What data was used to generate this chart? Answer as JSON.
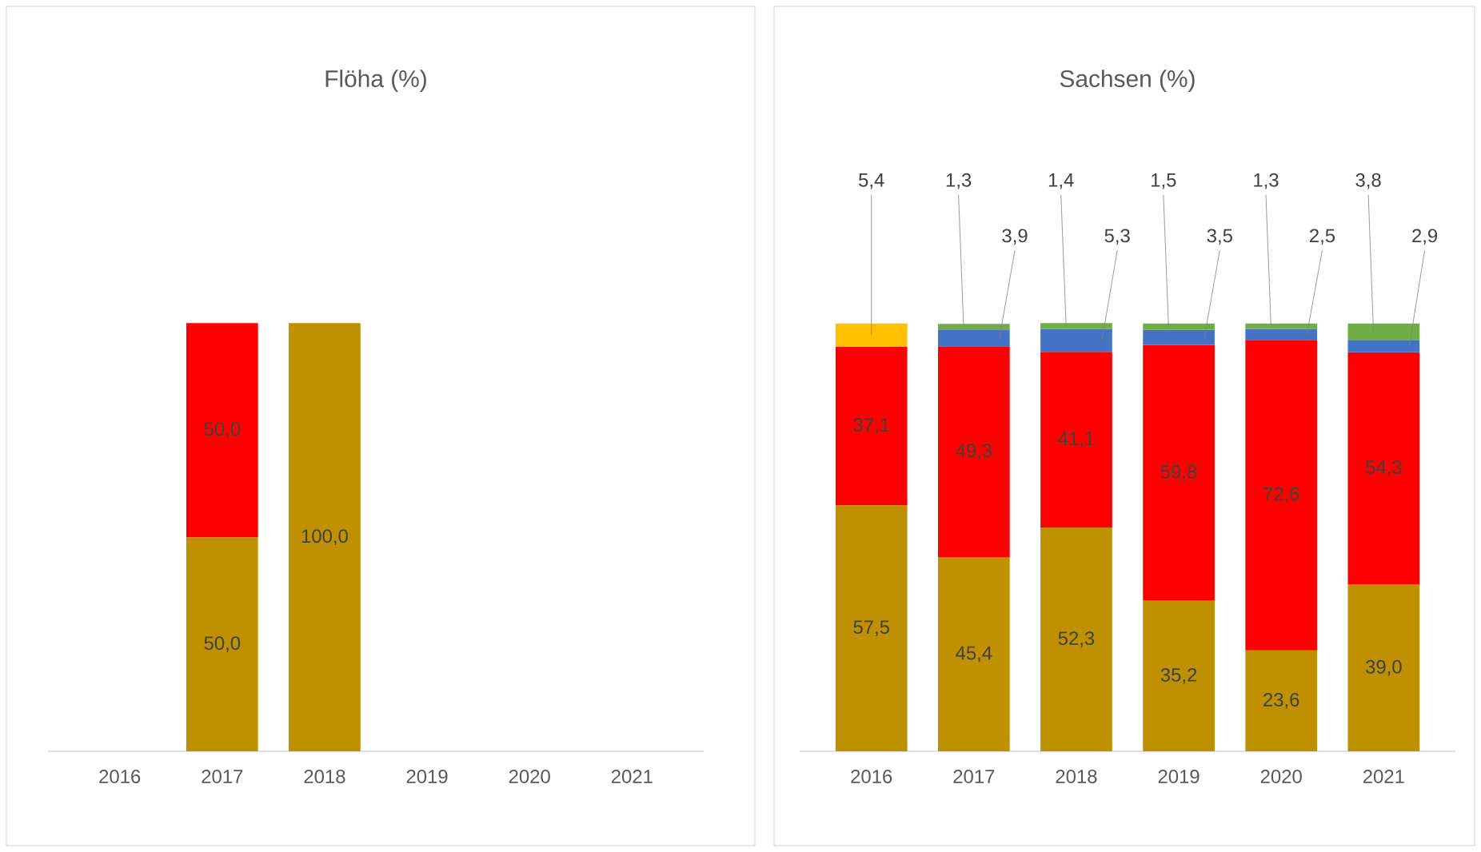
{
  "chart_data": [
    {
      "type": "bar",
      "title": "Flöha (%)",
      "stacked": true,
      "categories": [
        "2016",
        "2017",
        "2018",
        "2019",
        "2020",
        "2021"
      ],
      "series": [
        {
          "color": "#bf9000",
          "values": [
            null,
            50.0,
            100.0,
            null,
            null,
            null
          ],
          "value_labels": [
            null,
            "50,0",
            "100,0",
            null,
            null,
            null
          ]
        },
        {
          "color": "#ff0000",
          "values": [
            null,
            50.0,
            null,
            null,
            null,
            null
          ],
          "value_labels": [
            null,
            "50,0",
            null,
            null,
            null,
            null
          ]
        }
      ]
    },
    {
      "type": "bar",
      "title": "Sachsen (%)",
      "stacked": true,
      "categories": [
        "2016",
        "2017",
        "2018",
        "2019",
        "2020",
        "2021"
      ],
      "series": [
        {
          "color": "#bf9000",
          "values": [
            57.5,
            45.4,
            52.3,
            35.2,
            23.6,
            39.0
          ],
          "value_labels": [
            "57,5",
            "45,4",
            "52,3",
            "35,2",
            "23,6",
            "39,0"
          ]
        },
        {
          "color": "#ff0000",
          "values": [
            37.1,
            49.3,
            41.1,
            59.8,
            72.6,
            54.3
          ],
          "value_labels": [
            "37,1",
            "49,3",
            "41,1",
            "59,8",
            "72,6",
            "54,3"
          ]
        },
        {
          "color": "#ffc000",
          "values": [
            5.4,
            null,
            null,
            null,
            null,
            null
          ],
          "value_labels": [
            "5,4",
            null,
            null,
            null,
            null,
            null
          ]
        },
        {
          "color": "#4472c4",
          "values": [
            null,
            3.9,
            5.3,
            3.5,
            2.5,
            2.9
          ],
          "value_labels": [
            null,
            "3,9",
            "5,3",
            "3,5",
            "2,5",
            "2,9"
          ]
        },
        {
          "color": "#70ad47",
          "values": [
            null,
            1.3,
            1.4,
            1.5,
            1.3,
            3.8
          ],
          "value_labels": [
            null,
            "1,3",
            "1,4",
            "1,5",
            "1,3",
            "3,8"
          ]
        }
      ]
    }
  ]
}
